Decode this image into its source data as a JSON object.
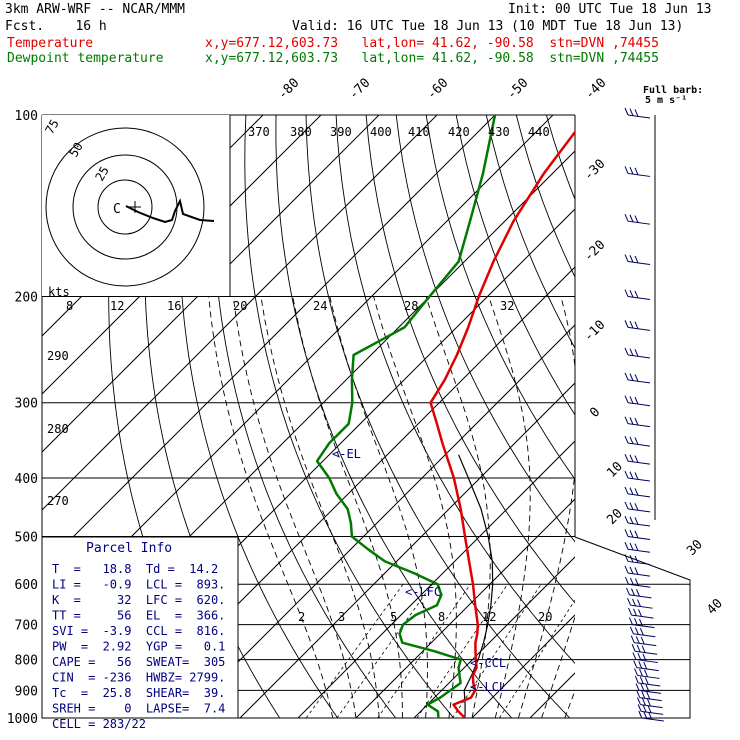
{
  "header": {
    "model": "3km ARW-WRF -- NCAR/MMM",
    "init": "Init: 00 UTC Tue 18 Jun 13",
    "fcst": "Fcst.    16 h",
    "valid": "Valid: 16 UTC Tue 18 Jun 13 (10 MDT Tue 18 Jun 13)",
    "temp_label": "Temperature",
    "dew_label": "Dewpoint temperature",
    "loc_info": "x,y=677.12,603.73   lat,lon= 41.62, -90.58  stn=DVN ,74455",
    "barb_title_1": "Full barb:",
    "barb_title_2": "5 m s⁻¹"
  },
  "chart_data": {
    "type": "skew-t",
    "pressure_levels": [
      100,
      200,
      300,
      400,
      500,
      600,
      700,
      800,
      900,
      1000
    ],
    "isotherm_labels": [
      "-80",
      "-70",
      "-60",
      "-50",
      "-40",
      "-30",
      "-20",
      "-10",
      "0",
      "10",
      "20",
      "30",
      "40"
    ],
    "theta_labels": [
      "370",
      "380",
      "390",
      "400",
      "410",
      "420",
      "430",
      "440"
    ],
    "theta_low_labels": [
      "290",
      "280",
      "270"
    ],
    "mixing_ratio_labels": [
      "2",
      "3",
      "5",
      "8",
      "12",
      "20"
    ],
    "hodograph_axis_labels": [
      "kts",
      "8",
      "12",
      "16",
      "20",
      "24",
      "28",
      "32"
    ],
    "hodograph_ring_labels": [
      "75",
      "50",
      "25"
    ],
    "levels": [
      {
        "name": "<-EL"
      },
      {
        "name": "<-LFC"
      },
      {
        "name": "<-CCL"
      },
      {
        "name": "<-LCL"
      }
    ],
    "temperature_series": {
      "name": "Temperature",
      "color": "#e00000",
      "p": [
        1000,
        975,
        950,
        925,
        900,
        875,
        850,
        825,
        800,
        775,
        750,
        725,
        700,
        650,
        600,
        550,
        500,
        450,
        400,
        350,
        325,
        300,
        275,
        250,
        225,
        200,
        175,
        150,
        125,
        100
      ],
      "t": [
        18.8,
        16.5,
        14.5,
        16.3,
        15.8,
        14.2,
        12.8,
        12.1,
        10.6,
        9.1,
        7.6,
        6.4,
        4.9,
        1.1,
        -2.9,
        -7.5,
        -12.5,
        -18.0,
        -24.5,
        -32.5,
        -36.8,
        -41.5,
        -43.0,
        -45.2,
        -48.0,
        -51.5,
        -55.0,
        -58.5,
        -61.5,
        -64.0
      ]
    },
    "dewpoint_series": {
      "name": "Dewpoint temperature",
      "color": "#007a00",
      "p": [
        1000,
        975,
        950,
        925,
        900,
        875,
        850,
        825,
        800,
        775,
        750,
        725,
        700,
        675,
        650,
        625,
        600,
        575,
        550,
        525,
        500,
        475,
        450,
        425,
        400,
        375,
        350,
        325,
        300,
        275,
        250,
        225,
        200,
        175,
        150,
        125,
        100
      ],
      "t": [
        14.2,
        13.0,
        10.0,
        11.0,
        11.5,
        12.0,
        10.5,
        9.0,
        8.0,
        2.0,
        -5.0,
        -7.0,
        -8.0,
        -7.5,
        -5.5,
        -6.5,
        -9.0,
        -15.0,
        -22.0,
        -27.0,
        -32.0,
        -34.5,
        -37.5,
        -42.0,
        -46.0,
        -51.0,
        -52.0,
        -52.0,
        -55.0,
        -59.0,
        -63.0,
        -59.0,
        -60.0,
        -61.0,
        -66.0,
        -72.0,
        -80.0
      ]
    },
    "parcel_series": {
      "p": [
        1000,
        950,
        900,
        850,
        800,
        750,
        700,
        650,
        600,
        550,
        500,
        450,
        400,
        366
      ],
      "t": [
        18.8,
        16.5,
        13.9,
        12.6,
        11.0,
        9.0,
        6.6,
        3.8,
        0.5,
        -3.5,
        -8.5,
        -14.5,
        -22.0,
        -27.7
      ]
    },
    "wind_barb_levels_hpa": [
      1000,
      975,
      950,
      925,
      900,
      875,
      850,
      825,
      800,
      775,
      750,
      725,
      700,
      675,
      650,
      625,
      600,
      575,
      550,
      525,
      500,
      475,
      450,
      425,
      400,
      375,
      350,
      325,
      300,
      275,
      250,
      225,
      200,
      175,
      150,
      125,
      100
    ]
  },
  "parcel_info": {
    "title": "Parcel Info",
    "rows": [
      "T  =   18.8  Td =  14.2",
      "LI =   -0.9  LCL =  893.",
      "K  =     32  LFC =  620.",
      "TT =     56  EL  =  366.",
      "SVI =  -3.9  CCL =  816.",
      "PW  =  2.92  YGP =   0.1",
      "CAPE =   56  SWEAT=  305",
      "CIN  = -236  HWBZ= 2799.",
      "Tc  =  25.8  SHEAR=  39.",
      "SREH =    0  LAPSE=  7.4",
      "CELL = 283/22"
    ]
  }
}
